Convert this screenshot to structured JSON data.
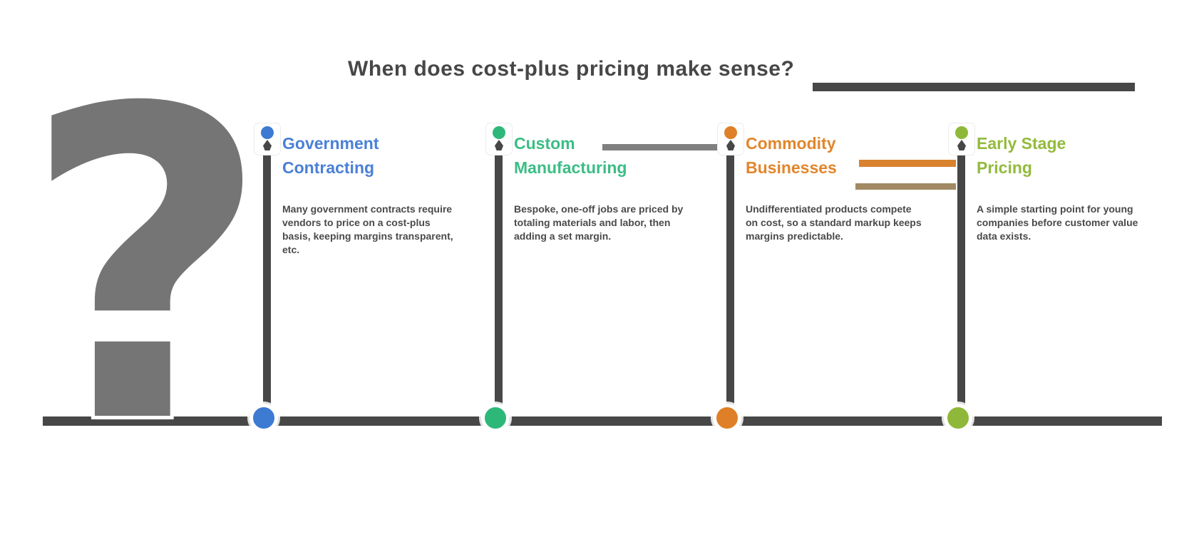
{
  "title": {
    "text": "When does cost-plus pricing make sense?"
  },
  "question_graphic": {
    "symbol": "?",
    "color": "#757575"
  },
  "timeline": {
    "axis_color": "#474747"
  },
  "palette": {
    "dark_gray": "#474747",
    "blue": "#4a80d6",
    "green": "#3bbd85",
    "orange": "#e2862d",
    "olive": "#94ba3c",
    "connector_gray": "#6a6a6a",
    "connector_orange": "#d9822e",
    "connector_tan": "#a18a64"
  },
  "milestones": [
    {
      "heading_line1": "Government",
      "heading_line2": "Contracting",
      "body": "Many government contracts require vendors to price on a cost-plus basis, keeping margins transparent, etc.",
      "color": "#4a80d6",
      "color_name": "blue"
    },
    {
      "heading_line1": "Custom",
      "heading_line2": "Manufacturing",
      "body": "Bespoke, one-off jobs are priced by totaling materials and labor, then adding a set margin.",
      "color": "#3bbd85",
      "color_name": "green"
    },
    {
      "heading_line1": "Commodity",
      "heading_line2": "Businesses",
      "body": "Undifferentiated products compete on cost, so a standard markup keeps margins predictable.",
      "color": "#e2862d",
      "color_name": "orange"
    },
    {
      "heading_line1": "Early Stage",
      "heading_line2": "Pricing",
      "body": "A simple starting point for young companies before customer value data exists.",
      "color": "#94ba3c",
      "color_name": "olive"
    }
  ]
}
